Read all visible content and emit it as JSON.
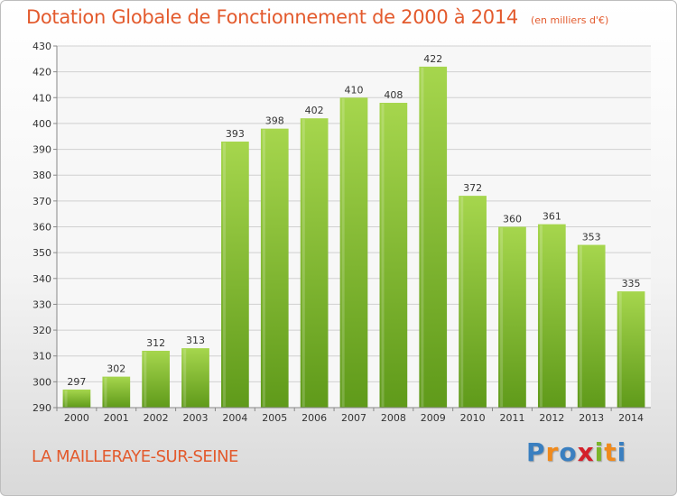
{
  "title": "Dotation Globale de Fonctionnement de 2000 à 2014",
  "subtitle": "(en milliers d'€)",
  "commune": "LA MAILLERAYE-SUR-SEINE",
  "logo": {
    "text": "Proxiti",
    "letters": [
      "P",
      "r",
      "o",
      "x",
      "i",
      "t",
      "i"
    ],
    "colors": [
      "#3a7fc0",
      "#f08a1c",
      "#3a7fc0",
      "#d4202a",
      "#7bb52a",
      "#f08a1c",
      "#3a7fc0"
    ]
  },
  "colors": {
    "bar": "#7fbf2e",
    "bar_light": "#a6d64d",
    "bar_dark": "#5f9a1a",
    "title": "#e35a2d",
    "grid": "#d0d0d0"
  },
  "chart_data": {
    "type": "bar",
    "categories": [
      "2000",
      "2001",
      "2002",
      "2003",
      "2004",
      "2005",
      "2006",
      "2007",
      "2008",
      "2009",
      "2010",
      "2011",
      "2012",
      "2013",
      "2014"
    ],
    "values": [
      297,
      302,
      312,
      313,
      393,
      398,
      402,
      410,
      408,
      422,
      372,
      360,
      361,
      353,
      335
    ],
    "title": "Dotation Globale de Fonctionnement de 2000 à 2014",
    "subtitle": "(en milliers d'€)",
    "xlabel": "",
    "ylabel": "",
    "ylim": [
      290,
      430
    ],
    "yticks": [
      290,
      300,
      310,
      320,
      330,
      340,
      350,
      360,
      370,
      380,
      390,
      400,
      410,
      420,
      430
    ],
    "grid": true,
    "legend": "none"
  }
}
